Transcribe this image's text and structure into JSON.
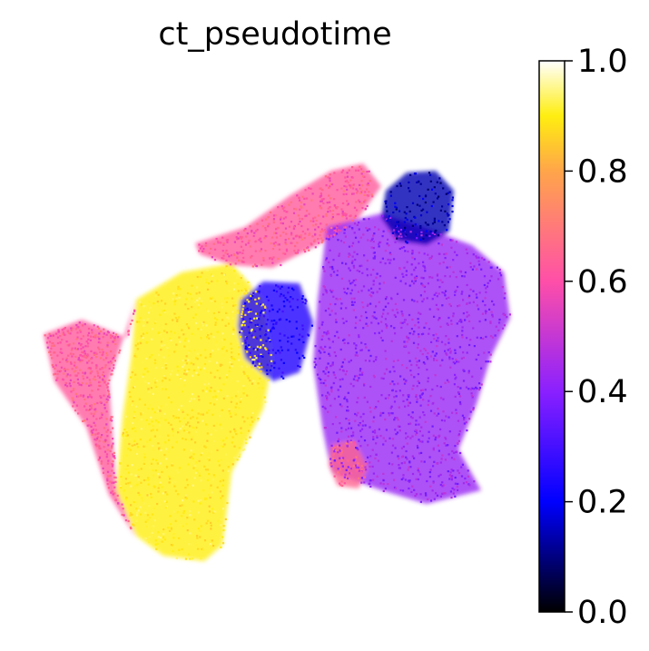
{
  "chart_data": {
    "type": "scatter",
    "title": "ct_pseudotime",
    "xlabel": "",
    "ylabel": "",
    "axes_visible": false,
    "grid": false,
    "color_variable": "ct_pseudotime",
    "colormap": "gnuplot2",
    "colorbar": {
      "range": [
        0.0,
        1.0
      ],
      "ticks": [
        0.0,
        0.2,
        0.4,
        0.6,
        0.8,
        1.0
      ],
      "tick_labels": [
        "0.0",
        "0.2",
        "0.4",
        "0.6",
        "0.8",
        "1.0"
      ],
      "stops": [
        {
          "value": 0.0,
          "color": "#000000"
        },
        {
          "value": 0.2,
          "color": "#0000ff"
        },
        {
          "value": 0.4,
          "color": "#8a20ff"
        },
        {
          "value": 0.6,
          "color": "#ff4fa8"
        },
        {
          "value": 0.8,
          "color": "#ffa54a"
        },
        {
          "value": 0.9,
          "color": "#ffee10"
        },
        {
          "value": 1.0,
          "color": "#ffffff"
        }
      ]
    },
    "point_groups": [
      {
        "region": "left-lower-lobe",
        "pseudotime_range": [
          0.85,
          0.95
        ]
      },
      {
        "region": "left-outer-rim",
        "pseudotime_range": [
          0.55,
          0.7
        ]
      },
      {
        "region": "upper-diagonal-band",
        "pseudotime_range": [
          0.55,
          0.7
        ]
      },
      {
        "region": "right-main-cluster",
        "pseudotime_range": [
          0.35,
          0.5
        ]
      },
      {
        "region": "top-right-dense-cluster",
        "pseudotime_range": [
          0.08,
          0.2
        ]
      },
      {
        "region": "center-left-pocket",
        "pseudotime_range": [
          0.2,
          0.3
        ]
      },
      {
        "region": "lower-center-patch",
        "pseudotime_range": [
          0.6,
          0.7
        ]
      }
    ]
  }
}
